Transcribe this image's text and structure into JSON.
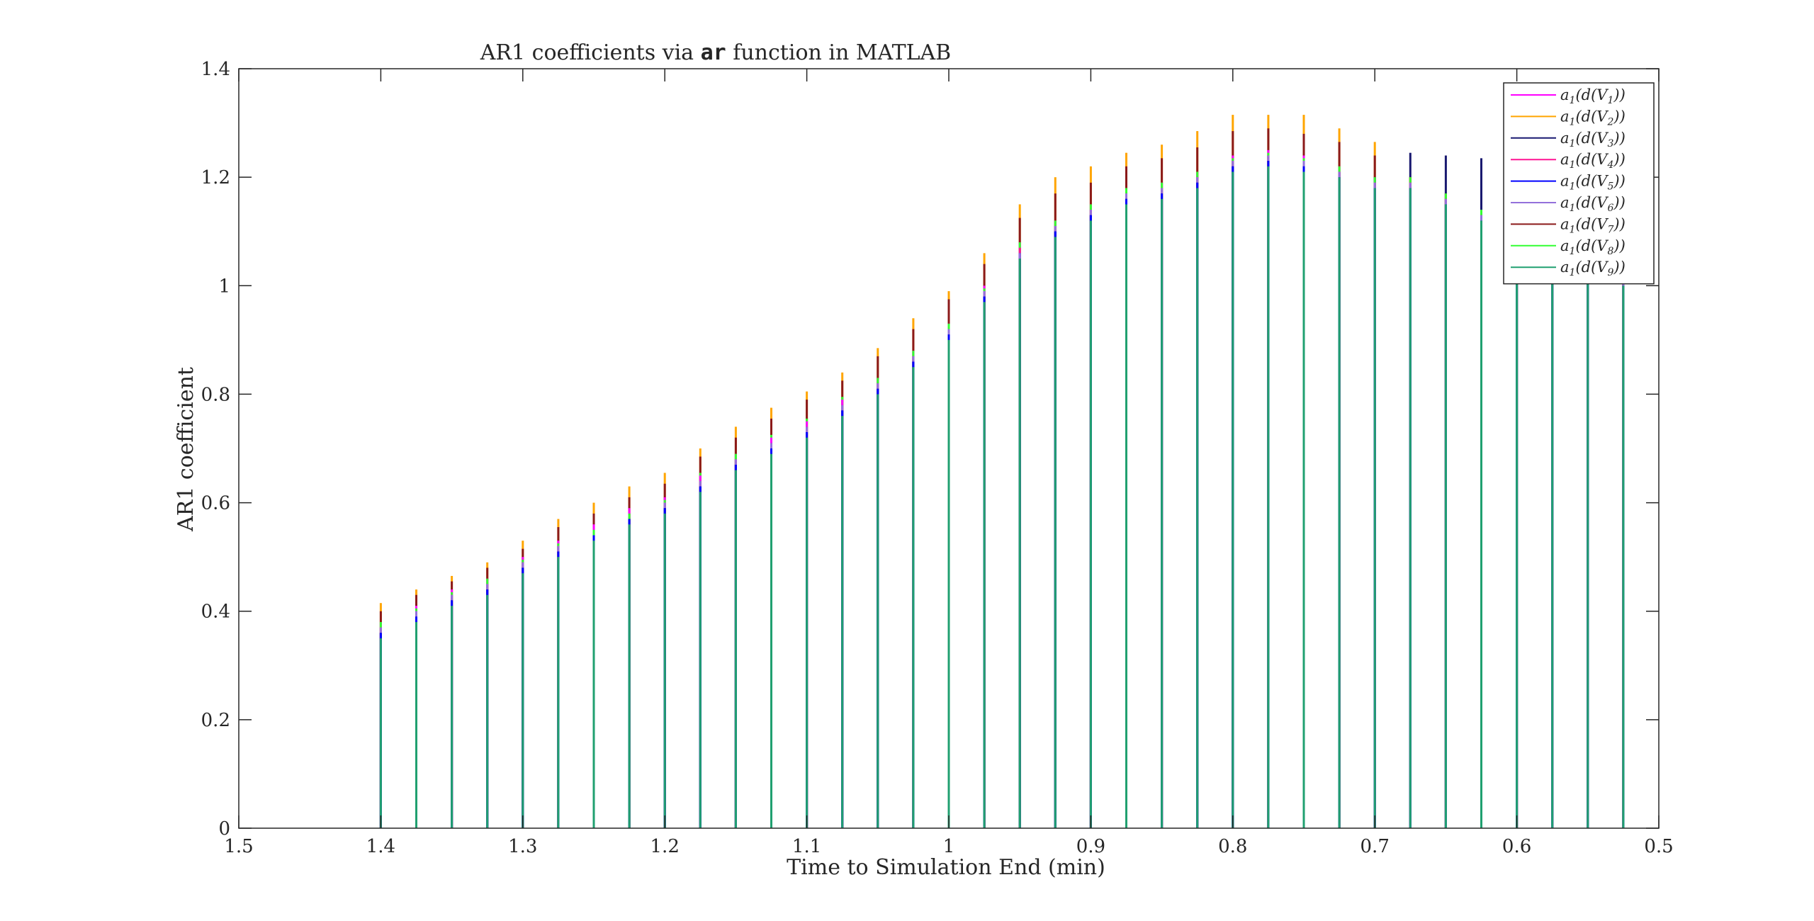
{
  "chart_data": {
    "type": "bar",
    "title_parts": [
      "AR1 coefficients via ",
      "ar",
      " function in MATLAB"
    ],
    "xlabel": "Time to Simulation End (min)",
    "ylabel": "AR1 coefficient",
    "xlim": [
      1.5,
      0.5
    ],
    "ylim": [
      0,
      1.4
    ],
    "x_reversed": true,
    "grid": false,
    "legend_position": "top-right",
    "x_ticks": [
      "1.5",
      "1.4",
      "1.3",
      "1.2",
      "1.1",
      "1",
      "0.9",
      "0.8",
      "0.7",
      "0.6",
      "0.5"
    ],
    "y_ticks": [
      "0",
      "0.2",
      "0.4",
      "0.6",
      "0.8",
      "1",
      "1.2",
      "1.4"
    ],
    "x": [
      1.4,
      1.375,
      1.35,
      1.325,
      1.3,
      1.275,
      1.25,
      1.225,
      1.2,
      1.175,
      1.15,
      1.125,
      1.1,
      1.075,
      1.05,
      1.025,
      1.0,
      0.975,
      0.95,
      0.925,
      0.9,
      0.875,
      0.85,
      0.825,
      0.8,
      0.775,
      0.75,
      0.725,
      0.7,
      0.675,
      0.65,
      0.625,
      0.6,
      0.575,
      0.55,
      0.525
    ],
    "series": [
      {
        "name": "a1(d(V1))",
        "color": "#ff00ff",
        "values": [
          0.38,
          0.41,
          0.44,
          0.46,
          0.5,
          0.53,
          0.56,
          0.59,
          0.61,
          0.65,
          0.69,
          0.72,
          0.75,
          0.79,
          0.83,
          0.88,
          0.93,
          1.0,
          1.08,
          1.12,
          1.15,
          1.18,
          1.19,
          1.21,
          1.24,
          1.25,
          1.24,
          1.22,
          1.2,
          1.2,
          1.17,
          1.14,
          1.1,
          1.06,
          1.04,
          1.02
        ]
      },
      {
        "name": "a1(d(V2))",
        "color": "#ffa500",
        "values": [
          0.415,
          0.44,
          0.465,
          0.49,
          0.53,
          0.57,
          0.6,
          0.63,
          0.655,
          0.7,
          0.74,
          0.775,
          0.805,
          0.84,
          0.885,
          0.94,
          0.99,
          1.06,
          1.15,
          1.2,
          1.22,
          1.245,
          1.26,
          1.285,
          1.315,
          1.315,
          1.315,
          1.29,
          1.265,
          1.2,
          1.17,
          1.14,
          1.1,
          1.06,
          1.04,
          1.02
        ]
      },
      {
        "name": "a1(d(V3))",
        "color": "#191970",
        "values": [
          0.36,
          0.39,
          0.42,
          0.44,
          0.48,
          0.51,
          0.54,
          0.57,
          0.59,
          0.63,
          0.67,
          0.7,
          0.73,
          0.77,
          0.81,
          0.86,
          0.91,
          0.98,
          1.05,
          1.1,
          1.13,
          1.16,
          1.17,
          1.19,
          1.22,
          1.23,
          1.22,
          1.21,
          1.2,
          1.245,
          1.24,
          1.235,
          1.1,
          1.06,
          1.04,
          1.02
        ]
      },
      {
        "name": "a1(d(V4))",
        "color": "#ff1493",
        "values": [
          0.37,
          0.4,
          0.43,
          0.45,
          0.49,
          0.52,
          0.55,
          0.58,
          0.6,
          0.64,
          0.68,
          0.71,
          0.74,
          0.78,
          0.82,
          0.87,
          0.92,
          0.99,
          1.07,
          1.11,
          1.14,
          1.17,
          1.18,
          1.2,
          1.23,
          1.24,
          1.23,
          1.21,
          1.19,
          1.19,
          1.16,
          1.13,
          1.09,
          1.05,
          1.03,
          1.01
        ]
      },
      {
        "name": "a1(d(V5))",
        "color": "#0000ff",
        "values": [
          0.36,
          0.39,
          0.42,
          0.44,
          0.48,
          0.51,
          0.54,
          0.57,
          0.59,
          0.63,
          0.67,
          0.7,
          0.73,
          0.77,
          0.81,
          0.86,
          0.91,
          0.98,
          1.06,
          1.1,
          1.13,
          1.16,
          1.17,
          1.19,
          1.22,
          1.23,
          1.22,
          1.2,
          1.18,
          1.18,
          1.15,
          1.12,
          1.08,
          1.04,
          1.02,
          1.0
        ]
      },
      {
        "name": "a1(d(V6))",
        "color": "#9370db",
        "values": [
          0.37,
          0.4,
          0.43,
          0.45,
          0.49,
          0.52,
          0.55,
          0.58,
          0.6,
          0.64,
          0.68,
          0.71,
          0.74,
          0.78,
          0.82,
          0.87,
          0.92,
          0.99,
          1.06,
          1.11,
          1.14,
          1.17,
          1.18,
          1.2,
          1.23,
          1.24,
          1.23,
          1.21,
          1.19,
          1.19,
          1.16,
          1.13,
          1.09,
          1.05,
          1.03,
          1.01
        ]
      },
      {
        "name": "a1(d(V7))",
        "color": "#8b1a1a",
        "values": [
          0.4,
          0.43,
          0.455,
          0.48,
          0.515,
          0.555,
          0.58,
          0.61,
          0.635,
          0.685,
          0.72,
          0.755,
          0.79,
          0.825,
          0.87,
          0.92,
          0.975,
          1.04,
          1.125,
          1.17,
          1.19,
          1.22,
          1.235,
          1.255,
          1.285,
          1.29,
          1.28,
          1.265,
          1.24,
          1.2,
          1.17,
          1.14,
          1.1,
          1.06,
          1.04,
          1.02
        ]
      },
      {
        "name": "a1(d(V8))",
        "color": "#32ff32",
        "values": [
          0.38,
          0.405,
          0.435,
          0.46,
          0.495,
          0.525,
          0.55,
          0.58,
          0.605,
          0.655,
          0.69,
          0.725,
          0.755,
          0.795,
          0.83,
          0.88,
          0.93,
          0.995,
          1.08,
          1.12,
          1.15,
          1.18,
          1.19,
          1.21,
          1.235,
          1.245,
          1.235,
          1.22,
          1.2,
          1.2,
          1.17,
          1.14,
          1.1,
          1.06,
          1.04,
          1.02
        ]
      },
      {
        "name": "a1(d(V9))",
        "color": "#20a070",
        "values": [
          0.35,
          0.38,
          0.41,
          0.43,
          0.47,
          0.5,
          0.53,
          0.56,
          0.58,
          0.62,
          0.66,
          0.69,
          0.72,
          0.76,
          0.8,
          0.85,
          0.9,
          0.97,
          1.05,
          1.09,
          1.12,
          1.15,
          1.16,
          1.18,
          1.21,
          1.22,
          1.21,
          1.2,
          1.18,
          1.18,
          1.15,
          1.12,
          1.08,
          1.04,
          1.02,
          1.0
        ]
      }
    ]
  }
}
